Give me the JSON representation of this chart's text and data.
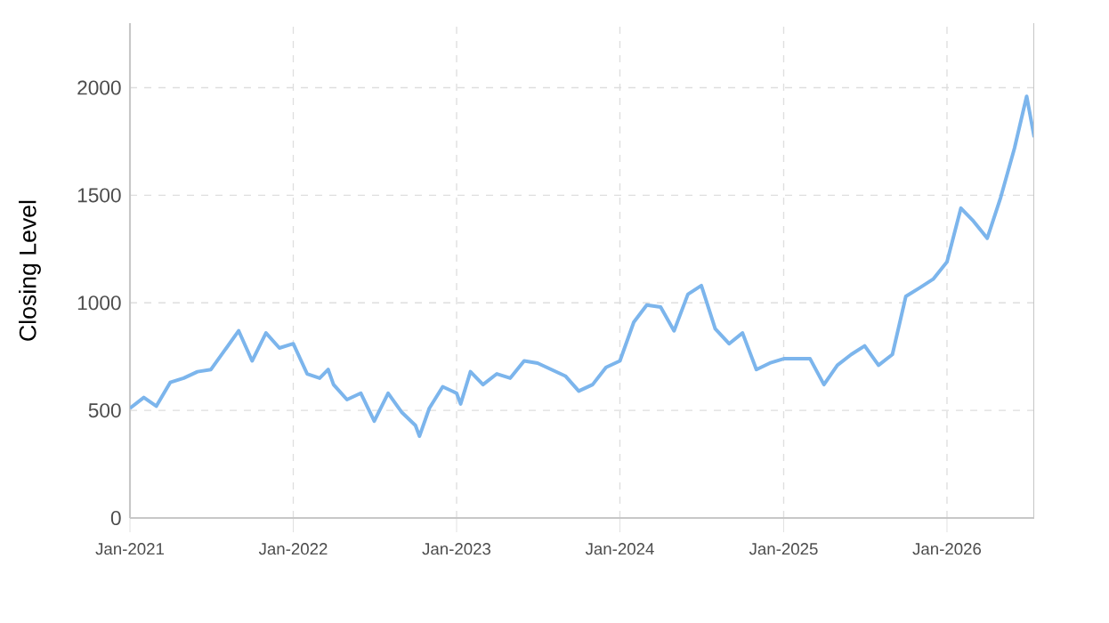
{
  "chart_data": {
    "type": "line",
    "ylabel": "Closing Level",
    "x": [
      "2021-01-01",
      "2021-02-01",
      "2021-03-01",
      "2021-04-01",
      "2021-05-01",
      "2021-06-01",
      "2021-07-01",
      "2021-08-01",
      "2021-09-01",
      "2021-10-01",
      "2021-11-01",
      "2021-12-01",
      "2022-01-01",
      "2022-02-01",
      "2022-03-01",
      "2022-03-20",
      "2022-04-01",
      "2022-05-01",
      "2022-06-01",
      "2022-07-01",
      "2022-08-01",
      "2022-09-01",
      "2022-10-01",
      "2022-10-10",
      "2022-11-01",
      "2022-12-01",
      "2023-01-01",
      "2023-01-10",
      "2023-02-01",
      "2023-03-01",
      "2023-04-01",
      "2023-05-01",
      "2023-06-01",
      "2023-07-01",
      "2023-08-01",
      "2023-09-01",
      "2023-10-01",
      "2023-11-01",
      "2023-12-01",
      "2024-01-01",
      "2024-02-01",
      "2024-03-01",
      "2024-04-01",
      "2024-05-01",
      "2024-06-01",
      "2024-07-01",
      "2024-08-01",
      "2024-09-01",
      "2024-10-01",
      "2024-11-01",
      "2024-12-01",
      "2025-01-01",
      "2025-02-01",
      "2025-03-01",
      "2025-04-01",
      "2025-05-01",
      "2025-06-01",
      "2025-07-01",
      "2025-08-01",
      "2025-09-01",
      "2025-10-01",
      "2025-11-01",
      "2025-12-01",
      "2026-01-01",
      "2026-02-01",
      "2026-03-01",
      "2026-04-01",
      "2026-05-01",
      "2026-06-01",
      "2026-06-28",
      "2026-07-15"
    ],
    "series": [
      {
        "color": "#7cb5ec",
        "values": [
          510,
          560,
          520,
          630,
          650,
          680,
          690,
          780,
          870,
          730,
          860,
          790,
          810,
          670,
          650,
          690,
          620,
          550,
          580,
          450,
          580,
          490,
          430,
          380,
          510,
          610,
          580,
          530,
          680,
          620,
          670,
          650,
          730,
          720,
          690,
          660,
          590,
          620,
          700,
          730,
          910,
          990,
          980,
          870,
          1040,
          1080,
          880,
          810,
          860,
          690,
          720,
          740,
          740,
          740,
          620,
          710,
          760,
          800,
          710,
          760,
          1030,
          1070,
          1110,
          1190,
          1440,
          1380,
          1300,
          1490,
          1720,
          1960,
          1770
        ]
      }
    ],
    "xlim": [
      "2021-01-01",
      "2026-07-15"
    ],
    "xticks": [
      {
        "value": "2021-01-01",
        "label": "Jan-2021"
      },
      {
        "value": "2022-01-01",
        "label": "Jan-2022"
      },
      {
        "value": "2023-01-01",
        "label": "Jan-2023"
      },
      {
        "value": "2024-01-01",
        "label": "Jan-2024"
      },
      {
        "value": "2025-01-01",
        "label": "Jan-2025"
      },
      {
        "value": "2026-01-01",
        "label": "Jan-2026"
      }
    ],
    "ylim": [
      0,
      2300
    ],
    "yticks": [
      0,
      500,
      1000,
      1500,
      2000
    ],
    "grid": true,
    "line_style": "solid",
    "marker": "none"
  }
}
